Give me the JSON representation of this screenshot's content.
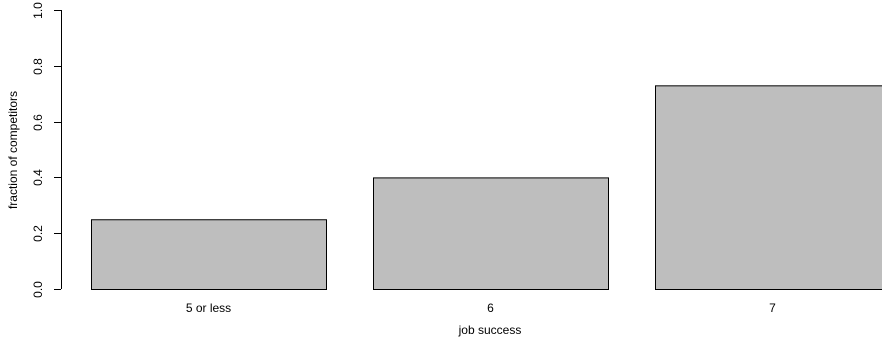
{
  "chart_data": {
    "type": "bar",
    "categories": [
      "5 or less",
      "6",
      "7"
    ],
    "values": [
      0.25,
      0.4,
      0.73
    ],
    "xlabel": "job success",
    "ylabel": "fraction of competitors",
    "ylim": [
      0,
      1
    ],
    "yticks": [
      0.0,
      0.2,
      0.4,
      0.6,
      0.8,
      1.0
    ],
    "ytick_labels": [
      "0.0",
      "0.2",
      "0.4",
      "0.6",
      "0.8",
      "1.0"
    ],
    "grid": false,
    "legend": "none",
    "bar_color": "#bebebe",
    "edge_color": "#000000"
  }
}
